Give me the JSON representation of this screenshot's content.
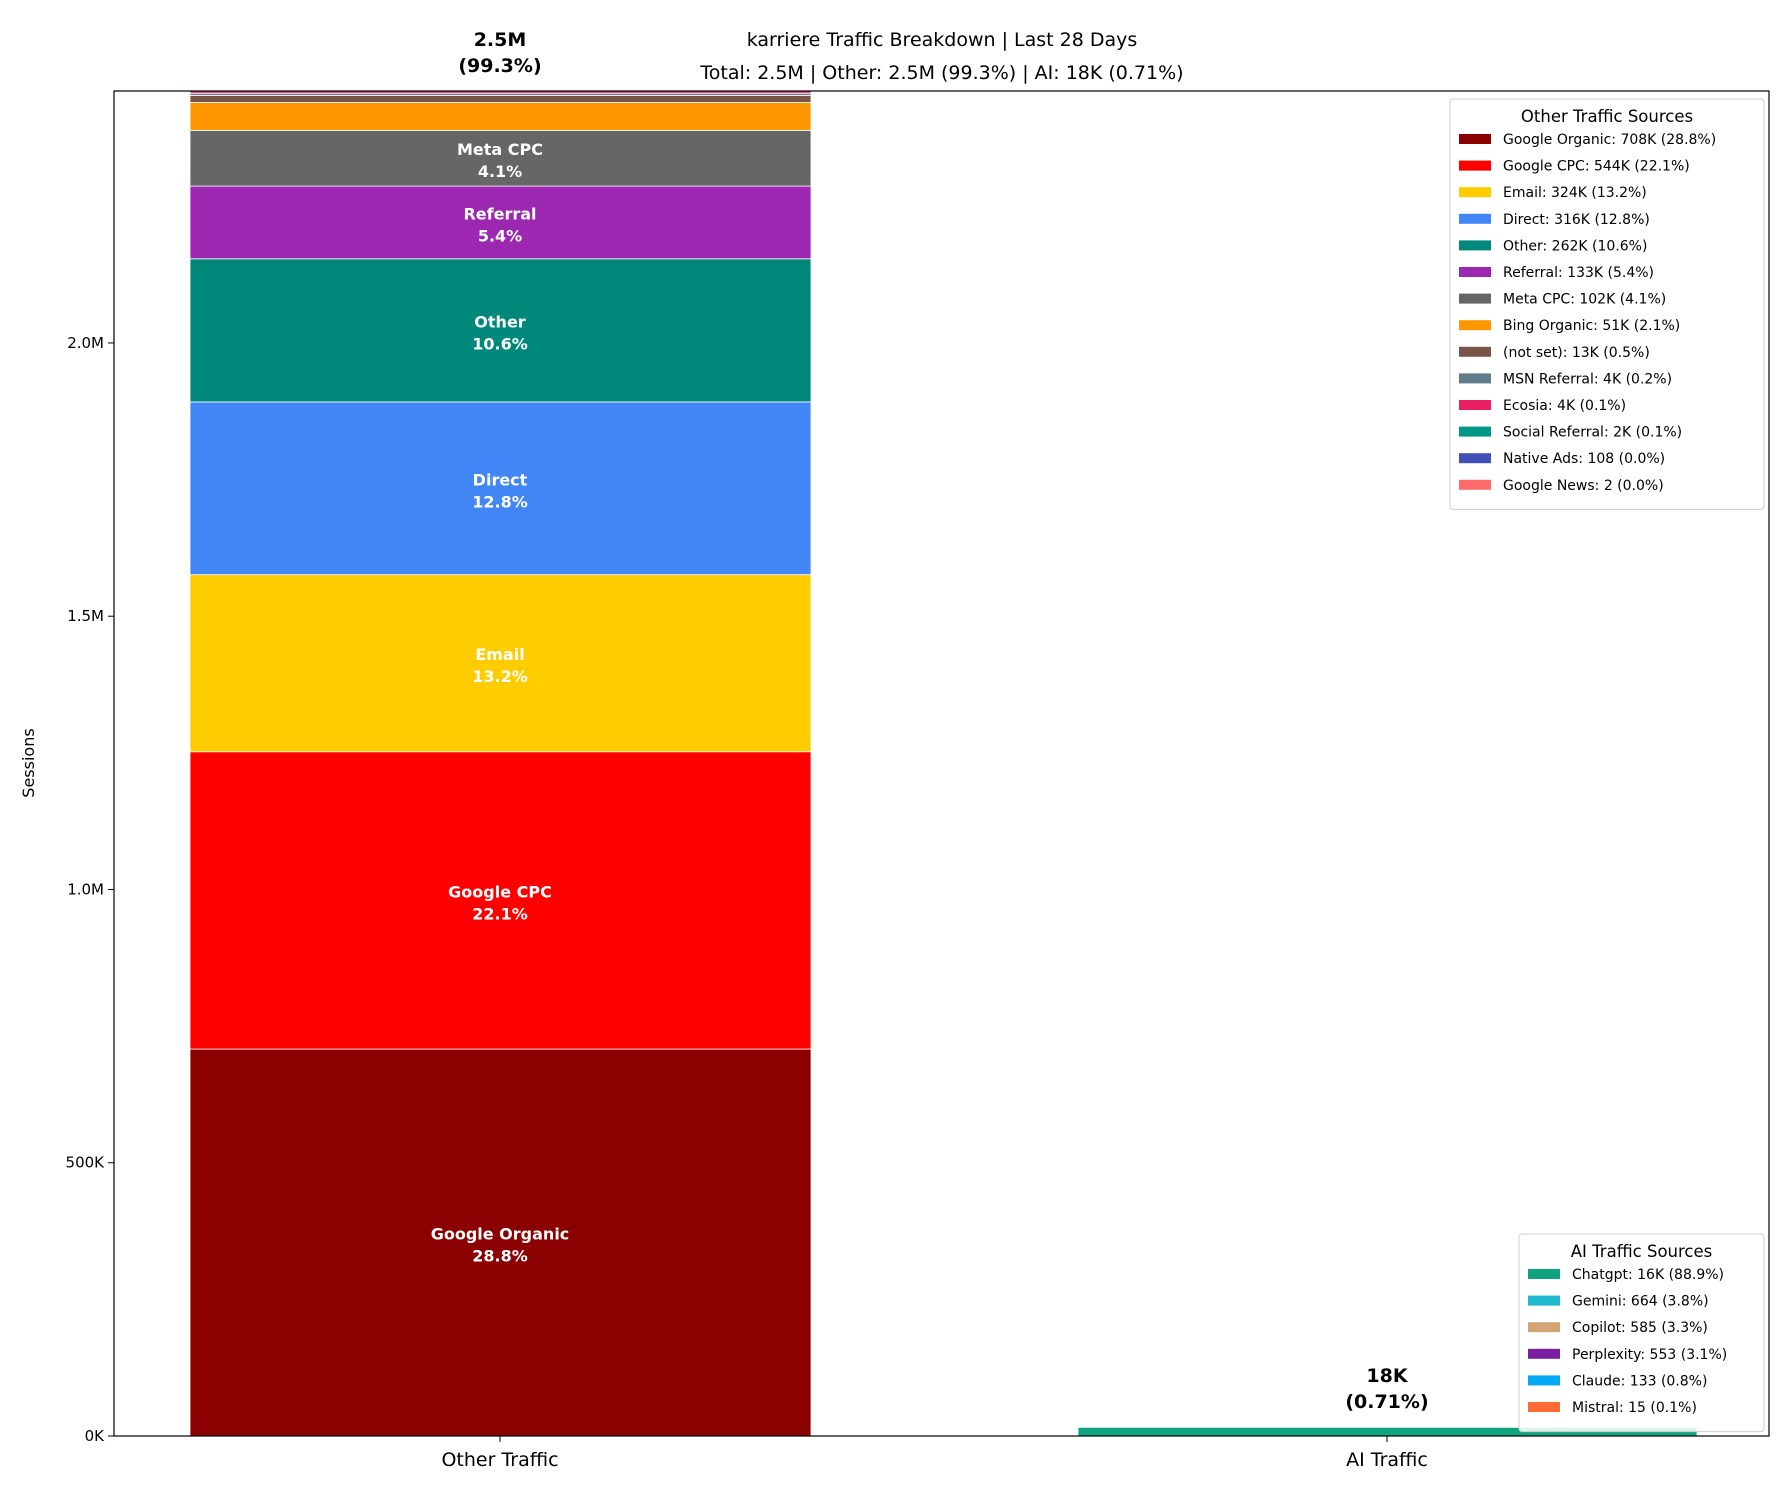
{
  "chart_data": {
    "type": "bar",
    "stacked": true,
    "title": "karriere Traffic Breakdown | Last 28 Days",
    "subtitle": "Total: 2.5M | Other: 2.5M (99.3%) | AI: 18K (0.71%)",
    "ylabel": "Sessions",
    "xlabel": "",
    "categories": [
      "Other Traffic",
      "AI Traffic"
    ],
    "ylim": [
      0,
      2461000
    ],
    "yticks": [
      0,
      500000,
      1000000,
      1500000,
      2000000
    ],
    "ytick_labels": [
      "0K",
      "500K",
      "1.0M",
      "1.5M",
      "2.0M"
    ],
    "grid": false,
    "totals": [
      {
        "value_label": "2.5M",
        "pct_label": "(99.3%)"
      },
      {
        "value_label": "18K",
        "pct_label": "(0.71%)"
      }
    ],
    "other_series": [
      {
        "name": "Google Organic",
        "value": 708000,
        "pct": "28.8%",
        "legend": "Google Organic: 708K (28.8%)",
        "color": "#8B0000",
        "show_label": true
      },
      {
        "name": "Google CPC",
        "value": 544000,
        "pct": "22.1%",
        "legend": "Google CPC: 544K (22.1%)",
        "color": "#FF0000",
        "show_label": true
      },
      {
        "name": "Email",
        "value": 324000,
        "pct": "13.2%",
        "legend": "Email: 324K (13.2%)",
        "color": "#FFCC00",
        "show_label": true
      },
      {
        "name": "Direct",
        "value": 316000,
        "pct": "12.8%",
        "legend": "Direct: 316K (12.8%)",
        "color": "#4285F4",
        "show_label": true
      },
      {
        "name": "Other",
        "value": 262000,
        "pct": "10.6%",
        "legend": "Other: 262K (10.6%)",
        "color": "#00897B",
        "show_label": true
      },
      {
        "name": "Referral",
        "value": 133000,
        "pct": "5.4%",
        "legend": "Referral: 133K (5.4%)",
        "color": "#9C27B0",
        "show_label": true
      },
      {
        "name": "Meta CPC",
        "value": 102000,
        "pct": "4.1%",
        "legend": "Meta CPC: 102K (4.1%)",
        "color": "#666666",
        "show_label": true
      },
      {
        "name": "Bing Organic",
        "value": 51000,
        "pct": "2.1%",
        "legend": "Bing Organic: 51K (2.1%)",
        "color": "#FF9800",
        "show_label": false
      },
      {
        "name": "(not set)",
        "value": 13000,
        "pct": "0.5%",
        "legend": "(not set): 13K (0.5%)",
        "color": "#795548",
        "show_label": false
      },
      {
        "name": "MSN Referral",
        "value": 4000,
        "pct": "0.2%",
        "legend": "MSN Referral: 4K (0.2%)",
        "color": "#607D8B",
        "show_label": false
      },
      {
        "name": "Ecosia",
        "value": 4000,
        "pct": "0.1%",
        "legend": "Ecosia: 4K (0.1%)",
        "color": "#E91E63",
        "show_label": false
      },
      {
        "name": "Social Referral",
        "value": 2000,
        "pct": "0.1%",
        "legend": "Social Referral: 2K (0.1%)",
        "color": "#009688",
        "show_label": false
      },
      {
        "name": "Native Ads",
        "value": 108,
        "pct": "0.0%",
        "legend": "Native Ads: 108 (0.0%)",
        "color": "#3F51B5",
        "show_label": false
      },
      {
        "name": "Google News",
        "value": 2,
        "pct": "0.0%",
        "legend": "Google News: 2 (0.0%)",
        "color": "#FF6B6B",
        "show_label": false
      }
    ],
    "ai_series": [
      {
        "name": "Chatgpt",
        "value": 16000,
        "pct": "88.9%",
        "legend": "Chatgpt: 16K (88.9%)",
        "color": "#10A37F"
      },
      {
        "name": "Gemini",
        "value": 664,
        "pct": "3.8%",
        "legend": "Gemini: 664 (3.8%)",
        "color": "#1FB8CD"
      },
      {
        "name": "Copilot",
        "value": 585,
        "pct": "3.3%",
        "legend": "Copilot: 585 (3.3%)",
        "color": "#D4A574"
      },
      {
        "name": "Perplexity",
        "value": 553,
        "pct": "3.1%",
        "legend": "Perplexity: 553 (3.1%)",
        "color": "#7B1FA2"
      },
      {
        "name": "Claude",
        "value": 133,
        "pct": "0.8%",
        "legend": "Claude: 133 (0.8%)",
        "color": "#03A9F4"
      },
      {
        "name": "Mistral",
        "value": 15,
        "pct": "0.1%",
        "legend": "Mistral: 15 (0.1%)",
        "color": "#FF6B35"
      }
    ],
    "legends": {
      "other_title": "Other Traffic Sources",
      "ai_title": "AI Traffic Sources",
      "other_placement": "top-right",
      "ai_placement": "bottom-right"
    }
  }
}
